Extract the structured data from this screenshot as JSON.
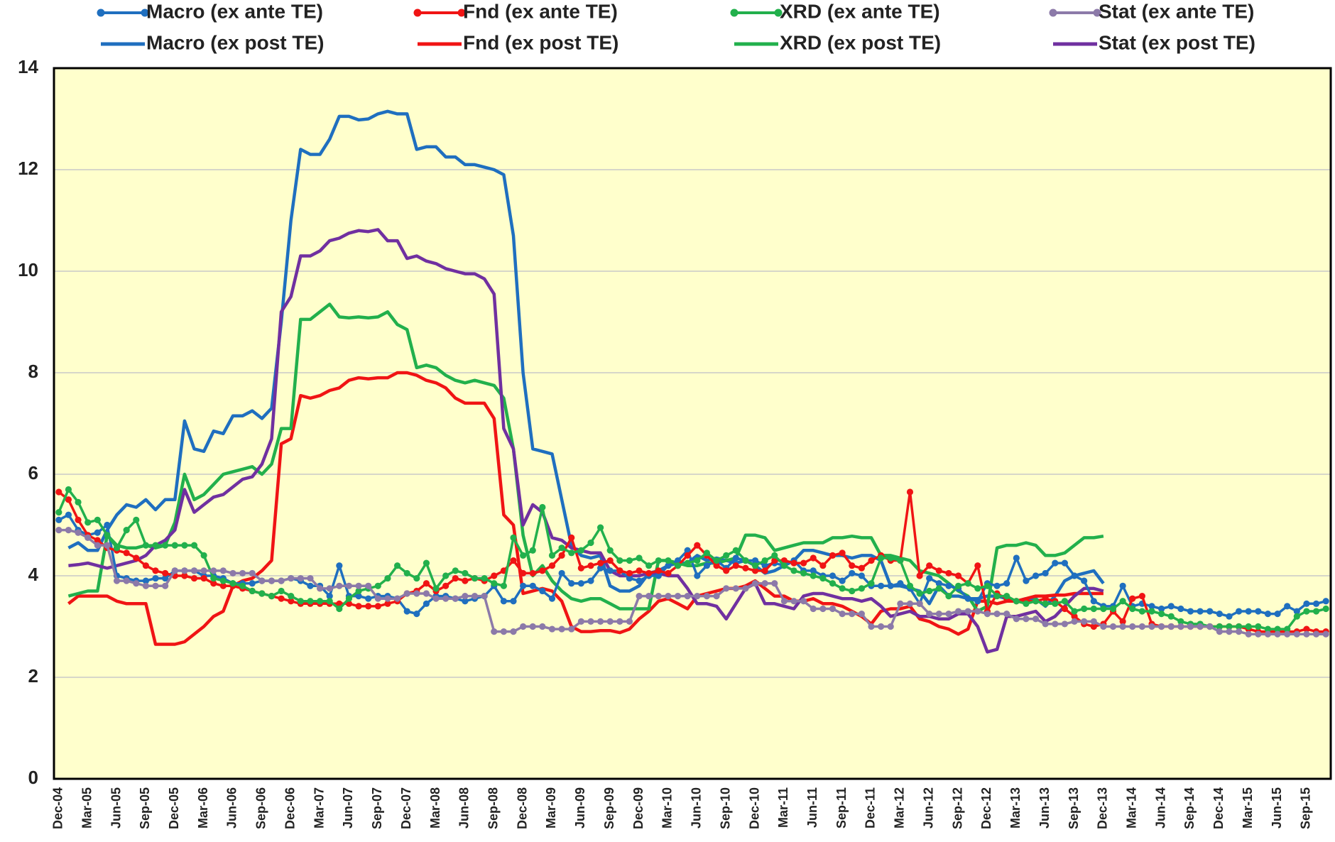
{
  "chart_data": {
    "type": "line",
    "categories": [
      "Dec-04",
      null,
      null,
      "Mar-05",
      null,
      null,
      "Jun-05",
      null,
      null,
      "Sep-05",
      null,
      null,
      "Dec-05",
      null,
      null,
      "Mar-06",
      null,
      null,
      "Jun-06",
      null,
      null,
      "Sep-06",
      null,
      null,
      "Dec-06",
      null,
      null,
      "Mar-07",
      null,
      null,
      "Jun-07",
      null,
      null,
      "Sep-07",
      null,
      null,
      "Dec-07",
      null,
      null,
      "Mar-08",
      null,
      null,
      "Jun-08",
      null,
      null,
      "Sep-08",
      null,
      null,
      "Dec-08",
      null,
      null,
      "Mar-09",
      null,
      null,
      "Jun-09",
      null,
      null,
      "Sep-09",
      null,
      null,
      "Dec-09",
      null,
      null,
      "Mar-10",
      null,
      null,
      "Jun-10",
      null,
      null,
      "Sep-10",
      null,
      null,
      "Dec-10",
      null,
      null,
      "Mar-11",
      null,
      null,
      "Jun-11",
      null,
      null,
      "Sep-11",
      null,
      null,
      "Dec-11",
      null,
      null,
      "Mar-12",
      null,
      null,
      "Jun-12",
      null,
      null,
      "Sep-12",
      null,
      null,
      "Dec-12",
      null,
      null,
      "Mar-13",
      null,
      null,
      "Jun-13",
      null,
      null,
      "Sep-13",
      null,
      null,
      "Dec-13",
      null,
      null,
      "Mar-14",
      null,
      null,
      "Jun-14",
      null,
      null,
      "Sep-14",
      null,
      null,
      "Dec-14",
      null,
      null,
      "Mar-15",
      null,
      null,
      "Jun-15",
      null,
      null,
      "Sep-15",
      null,
      null
    ],
    "ylim": [
      0,
      14
    ],
    "yticks": [
      0,
      2,
      4,
      6,
      8,
      10,
      12,
      14
    ],
    "grid": true,
    "legend": "top",
    "series": [
      {
        "name": "Macro (ex ante TE)",
        "color": "#1f6fbf",
        "marker": true,
        "values": [
          5.1,
          5.2,
          4.9,
          4.8,
          4.85,
          5.0,
          4.0,
          3.95,
          3.9,
          3.9,
          3.95,
          3.95,
          4.1,
          4.1,
          4.1,
          4.0,
          4.0,
          3.95,
          3.85,
          3.85,
          3.85,
          3.9,
          3.9,
          3.9,
          3.95,
          3.9,
          3.8,
          3.8,
          3.6,
          4.2,
          3.6,
          3.6,
          3.55,
          3.6,
          3.6,
          3.55,
          3.3,
          3.25,
          3.45,
          3.6,
          3.6,
          3.55,
          3.5,
          3.55,
          3.6,
          3.8,
          3.5,
          3.5,
          3.8,
          3.8,
          3.7,
          3.55,
          4.05,
          3.85,
          3.85,
          3.9,
          4.15,
          4.1,
          4.1,
          3.95,
          3.9,
          4.0,
          4.0,
          4.2,
          4.3,
          4.5,
          4.0,
          4.2,
          4.3,
          4.15,
          4.35,
          4.3,
          4.3,
          4.2,
          4.25,
          4.2,
          4.3,
          4.1,
          4.1,
          4.0,
          4.0,
          3.9,
          4.05,
          4.0,
          3.8,
          3.8,
          3.8,
          3.85,
          3.75,
          3.45,
          3.95,
          3.85,
          3.8,
          3.75,
          3.55,
          3.5,
          3.85,
          3.8,
          3.85,
          4.35,
          3.9,
          4.0,
          4.05,
          4.25,
          4.25,
          4.0,
          3.9,
          3.5,
          3.4,
          3.4,
          3.8,
          3.4,
          3.45,
          3.4,
          3.35,
          3.4,
          3.35,
          3.3,
          3.3,
          3.3,
          3.25,
          3.2,
          3.3,
          3.3,
          3.3,
          3.25,
          3.25,
          3.4,
          3.3,
          3.45,
          3.45,
          3.5
        ]
      },
      {
        "name": "Fnd (ex ante TE)",
        "color": "#f01414",
        "marker": true,
        "values": [
          5.65,
          5.5,
          5.1,
          4.8,
          4.7,
          4.55,
          4.5,
          4.45,
          4.35,
          4.2,
          4.1,
          4.05,
          4.0,
          4.0,
          3.95,
          3.95,
          3.85,
          3.8,
          3.8,
          3.75,
          3.7,
          3.65,
          3.6,
          3.55,
          3.5,
          3.45,
          3.45,
          3.45,
          3.45,
          3.45,
          3.45,
          3.4,
          3.4,
          3.4,
          3.45,
          3.5,
          3.65,
          3.7,
          3.85,
          3.7,
          3.8,
          3.95,
          3.9,
          3.95,
          3.9,
          4.0,
          4.1,
          4.3,
          4.05,
          4.05,
          4.1,
          4.2,
          4.4,
          4.75,
          4.15,
          4.2,
          4.25,
          4.3,
          4.1,
          4.05,
          4.1,
          4.05,
          4.1,
          4.05,
          4.2,
          4.4,
          4.6,
          4.4,
          4.2,
          4.1,
          4.2,
          4.15,
          4.1,
          4.1,
          4.3,
          4.3,
          4.25,
          4.25,
          4.35,
          4.2,
          4.4,
          4.45,
          4.2,
          4.15,
          4.3,
          4.4,
          4.3,
          4.3,
          5.65,
          4.0,
          4.2,
          4.1,
          4.05,
          4.0,
          3.85,
          4.2,
          3.3,
          3.65,
          3.55,
          3.5,
          3.5,
          3.5,
          3.55,
          3.5,
          3.35,
          3.2,
          3.05,
          3.0,
          3.05,
          3.3,
          3.1,
          3.55,
          3.6,
          3.05,
          3.0,
          3.0,
          3.0,
          3.0,
          3.0,
          3.0,
          3.0,
          3.0,
          3.0,
          2.95,
          2.9,
          2.9,
          2.9,
          2.9,
          2.9,
          2.95,
          2.9,
          2.9
        ]
      },
      {
        "name": "XRD (ex ante TE)",
        "color": "#22b04c",
        "marker": true,
        "values": [
          5.25,
          5.7,
          5.45,
          5.05,
          5.1,
          4.8,
          4.55,
          4.9,
          5.1,
          4.6,
          4.6,
          4.6,
          4.6,
          4.6,
          4.6,
          4.4,
          3.95,
          3.9,
          3.85,
          3.8,
          3.7,
          3.65,
          3.6,
          3.7,
          3.6,
          3.5,
          3.5,
          3.5,
          3.5,
          3.35,
          3.55,
          3.7,
          3.75,
          3.8,
          3.95,
          4.2,
          4.05,
          3.95,
          4.25,
          3.75,
          4.0,
          4.1,
          4.05,
          3.95,
          3.95,
          3.85,
          3.8,
          4.75,
          4.4,
          4.5,
          5.35,
          4.4,
          4.55,
          4.45,
          4.5,
          4.65,
          4.95,
          4.5,
          4.3,
          4.3,
          4.35,
          4.2,
          4.3,
          4.3,
          4.2,
          4.25,
          4.3,
          4.45,
          4.3,
          4.4,
          4.5,
          4.3,
          4.2,
          4.3,
          4.4,
          4.2,
          4.1,
          4.05,
          4.0,
          3.95,
          3.85,
          3.75,
          3.7,
          3.75,
          3.85,
          4.35,
          4.35,
          4.3,
          3.8,
          3.65,
          3.7,
          3.75,
          3.6,
          3.8,
          3.85,
          3.75,
          3.8,
          3.6,
          3.6,
          3.5,
          3.45,
          3.5,
          3.45,
          3.45,
          3.5,
          3.3,
          3.35,
          3.35,
          3.35,
          3.35,
          3.5,
          3.35,
          3.3,
          3.3,
          3.25,
          3.2,
          3.1,
          3.05,
          3.05,
          3.0,
          3.0,
          3.0,
          3.0,
          3.0,
          3.0,
          2.95,
          2.95,
          2.95,
          3.2,
          3.3,
          3.3,
          3.35
        ]
      },
      {
        "name": "Stat (ex ante TE)",
        "color": "#8c7aa9",
        "marker": true,
        "values": [
          4.9,
          4.9,
          4.85,
          4.75,
          4.6,
          4.6,
          3.9,
          3.9,
          3.85,
          3.8,
          3.8,
          3.8,
          4.1,
          4.1,
          4.1,
          4.1,
          4.1,
          4.1,
          4.05,
          4.05,
          4.05,
          3.9,
          3.9,
          3.9,
          3.95,
          3.95,
          3.95,
          3.75,
          3.75,
          3.8,
          3.8,
          3.8,
          3.8,
          3.55,
          3.55,
          3.55,
          3.65,
          3.65,
          3.65,
          3.55,
          3.55,
          3.55,
          3.6,
          3.6,
          3.6,
          2.9,
          2.9,
          2.9,
          3.0,
          3.0,
          3.0,
          2.95,
          2.95,
          2.95,
          3.1,
          3.1,
          3.1,
          3.1,
          3.1,
          3.1,
          3.6,
          3.6,
          3.6,
          3.6,
          3.6,
          3.6,
          3.6,
          3.6,
          3.6,
          3.75,
          3.75,
          3.75,
          3.85,
          3.85,
          3.85,
          3.5,
          3.5,
          3.5,
          3.35,
          3.35,
          3.35,
          3.25,
          3.25,
          3.25,
          3.0,
          3.0,
          3.0,
          3.45,
          3.45,
          3.45,
          3.25,
          3.25,
          3.25,
          3.3,
          3.3,
          3.3,
          3.25,
          3.25,
          3.25,
          3.15,
          3.15,
          3.15,
          3.05,
          3.05,
          3.05,
          3.1,
          3.1,
          3.1,
          3.0,
          3.0,
          3.0,
          3.0,
          3.0,
          3.0,
          3.0,
          3.0,
          3.0,
          3.0,
          3.0,
          3.0,
          2.9,
          2.9,
          2.9,
          2.85,
          2.85,
          2.85,
          2.85,
          2.85,
          2.85,
          2.85,
          2.85,
          2.85
        ]
      },
      {
        "name": "Macro (ex post TE)",
        "color": "#1f6fbf",
        "marker": false,
        "values": [
          null,
          4.55,
          4.65,
          4.5,
          4.5,
          4.9,
          5.2,
          5.4,
          5.35,
          5.5,
          5.3,
          5.5,
          5.5,
          7.05,
          6.5,
          6.45,
          6.85,
          6.8,
          7.15,
          7.15,
          7.25,
          7.1,
          7.3,
          9.0,
          11.0,
          12.4,
          12.3,
          12.3,
          12.6,
          13.05,
          13.05,
          12.98,
          13.0,
          13.1,
          13.15,
          13.1,
          13.1,
          12.4,
          12.45,
          12.45,
          12.25,
          12.25,
          12.1,
          12.1,
          12.05,
          12.0,
          11.9,
          10.7,
          8.0,
          6.5,
          6.45,
          6.4,
          5.5,
          4.6,
          4.4,
          4.35,
          4.4,
          3.8,
          3.7,
          3.7,
          3.8,
          4.05,
          4.1,
          4.2,
          4.25,
          4.25,
          4.4,
          4.3,
          4.35,
          4.3,
          4.25,
          4.3,
          4.2,
          4.05,
          4.1,
          4.2,
          4.3,
          4.5,
          4.5,
          4.45,
          4.4,
          4.4,
          4.35,
          4.4,
          4.4,
          4.3,
          3.8,
          3.8,
          3.75,
          3.7,
          3.45,
          3.8,
          3.6,
          3.6,
          3.55,
          3.55,
          3.6,
          3.6,
          3.55,
          3.5,
          3.55,
          3.55,
          3.4,
          3.6,
          3.9,
          4.0,
          4.05,
          4.1,
          3.85,
          null,
          null,
          null,
          null,
          null,
          null,
          null,
          null,
          null,
          null,
          null,
          null,
          null,
          null,
          null,
          null,
          null,
          null,
          null,
          null,
          null,
          null,
          null
        ]
      },
      {
        "name": "Fnd (ex post TE)",
        "color": "#f01414",
        "marker": false,
        "values": [
          null,
          3.45,
          3.6,
          3.6,
          3.6,
          3.6,
          3.5,
          3.45,
          3.45,
          3.45,
          2.65,
          2.65,
          2.65,
          2.7,
          2.85,
          3.0,
          3.2,
          3.3,
          3.8,
          3.9,
          3.95,
          4.1,
          4.3,
          6.6,
          6.7,
          7.55,
          7.5,
          7.55,
          7.65,
          7.7,
          7.85,
          7.9,
          7.88,
          7.9,
          7.9,
          8.0,
          8.0,
          7.95,
          7.85,
          7.8,
          7.7,
          7.5,
          7.4,
          7.4,
          7.4,
          7.1,
          5.2,
          5.0,
          3.65,
          3.7,
          3.75,
          3.7,
          3.5,
          3.0,
          2.9,
          2.9,
          2.92,
          2.92,
          2.88,
          2.95,
          3.15,
          3.3,
          3.5,
          3.55,
          3.45,
          3.35,
          3.6,
          3.65,
          3.7,
          3.75,
          3.75,
          3.8,
          3.9,
          3.75,
          3.6,
          3.6,
          3.5,
          3.5,
          3.55,
          3.45,
          3.45,
          3.4,
          3.3,
          3.2,
          3.05,
          3.3,
          3.35,
          3.35,
          3.4,
          3.15,
          3.1,
          3.0,
          2.95,
          2.85,
          2.95,
          3.5,
          3.5,
          3.45,
          3.5,
          3.5,
          3.55,
          3.6,
          3.6,
          3.62,
          3.62,
          3.65,
          3.65,
          3.65,
          3.65,
          null,
          null,
          null,
          null,
          null,
          null,
          null,
          null,
          null,
          null,
          null,
          null,
          null,
          null,
          null,
          null,
          null,
          null,
          null,
          null,
          null,
          null,
          null
        ]
      },
      {
        "name": "XRD (ex post TE)",
        "color": "#22b04c",
        "marker": false,
        "values": [
          null,
          3.6,
          3.65,
          3.7,
          3.7,
          4.8,
          4.6,
          4.55,
          4.55,
          4.6,
          4.55,
          4.6,
          5.05,
          6.0,
          5.5,
          5.6,
          5.8,
          6.0,
          6.05,
          6.1,
          6.15,
          6.0,
          6.2,
          6.9,
          6.9,
          9.05,
          9.05,
          9.2,
          9.35,
          9.1,
          9.08,
          9.1,
          9.08,
          9.1,
          9.2,
          8.95,
          8.85,
          8.1,
          8.15,
          8.1,
          7.95,
          7.85,
          7.8,
          7.85,
          7.8,
          7.75,
          7.5,
          6.5,
          4.8,
          4.0,
          4.2,
          3.9,
          3.7,
          3.55,
          3.5,
          3.55,
          3.55,
          3.45,
          3.35,
          3.35,
          3.35,
          3.35,
          4.3,
          4.3,
          4.25,
          4.2,
          4.2,
          4.25,
          4.25,
          4.3,
          4.35,
          4.8,
          4.8,
          4.75,
          4.5,
          4.55,
          4.6,
          4.65,
          4.65,
          4.65,
          4.75,
          4.75,
          4.78,
          4.75,
          4.75,
          4.4,
          4.4,
          4.35,
          4.3,
          4.1,
          4.05,
          4.0,
          3.85,
          3.7,
          3.6,
          3.3,
          3.4,
          4.55,
          4.6,
          4.6,
          4.65,
          4.6,
          4.4,
          4.4,
          4.45,
          4.6,
          4.75,
          4.75,
          4.78,
          null,
          null,
          null,
          null,
          null,
          null,
          null,
          null,
          null,
          null,
          null,
          null,
          null,
          null,
          null,
          null,
          null,
          null,
          null,
          null,
          null,
          null,
          null
        ]
      },
      {
        "name": "Stat (ex post TE)",
        "color": "#7030a0",
        "marker": false,
        "values": [
          null,
          4.2,
          4.22,
          4.25,
          4.2,
          4.15,
          4.2,
          4.25,
          4.3,
          4.4,
          4.6,
          4.7,
          4.9,
          5.7,
          5.25,
          5.4,
          5.55,
          5.6,
          5.75,
          5.9,
          5.95,
          6.2,
          6.7,
          9.2,
          9.5,
          10.3,
          10.3,
          10.4,
          10.6,
          10.65,
          10.75,
          10.8,
          10.78,
          10.82,
          10.6,
          10.6,
          10.25,
          10.3,
          10.2,
          10.15,
          10.05,
          10.0,
          9.95,
          9.95,
          9.85,
          9.55,
          6.9,
          6.5,
          5.0,
          5.4,
          5.25,
          4.75,
          4.7,
          4.55,
          4.5,
          4.45,
          4.45,
          4.1,
          4.0,
          4.0,
          4.0,
          4.05,
          4.05,
          4.0,
          4.0,
          3.75,
          3.45,
          3.45,
          3.4,
          3.15,
          3.45,
          3.75,
          3.85,
          3.45,
          3.45,
          3.4,
          3.35,
          3.6,
          3.65,
          3.65,
          3.6,
          3.55,
          3.55,
          3.5,
          3.55,
          3.4,
          3.2,
          3.25,
          3.3,
          3.2,
          3.2,
          3.15,
          3.15,
          3.25,
          3.25,
          3.0,
          2.5,
          2.55,
          3.2,
          3.2,
          3.25,
          3.3,
          3.1,
          3.2,
          3.4,
          3.6,
          3.75,
          3.75,
          3.7,
          null,
          null,
          null,
          null,
          null,
          null,
          null,
          null,
          null,
          null,
          null,
          null,
          null,
          null,
          null,
          null,
          null,
          null,
          null,
          null,
          null,
          null,
          null
        ]
      }
    ]
  }
}
